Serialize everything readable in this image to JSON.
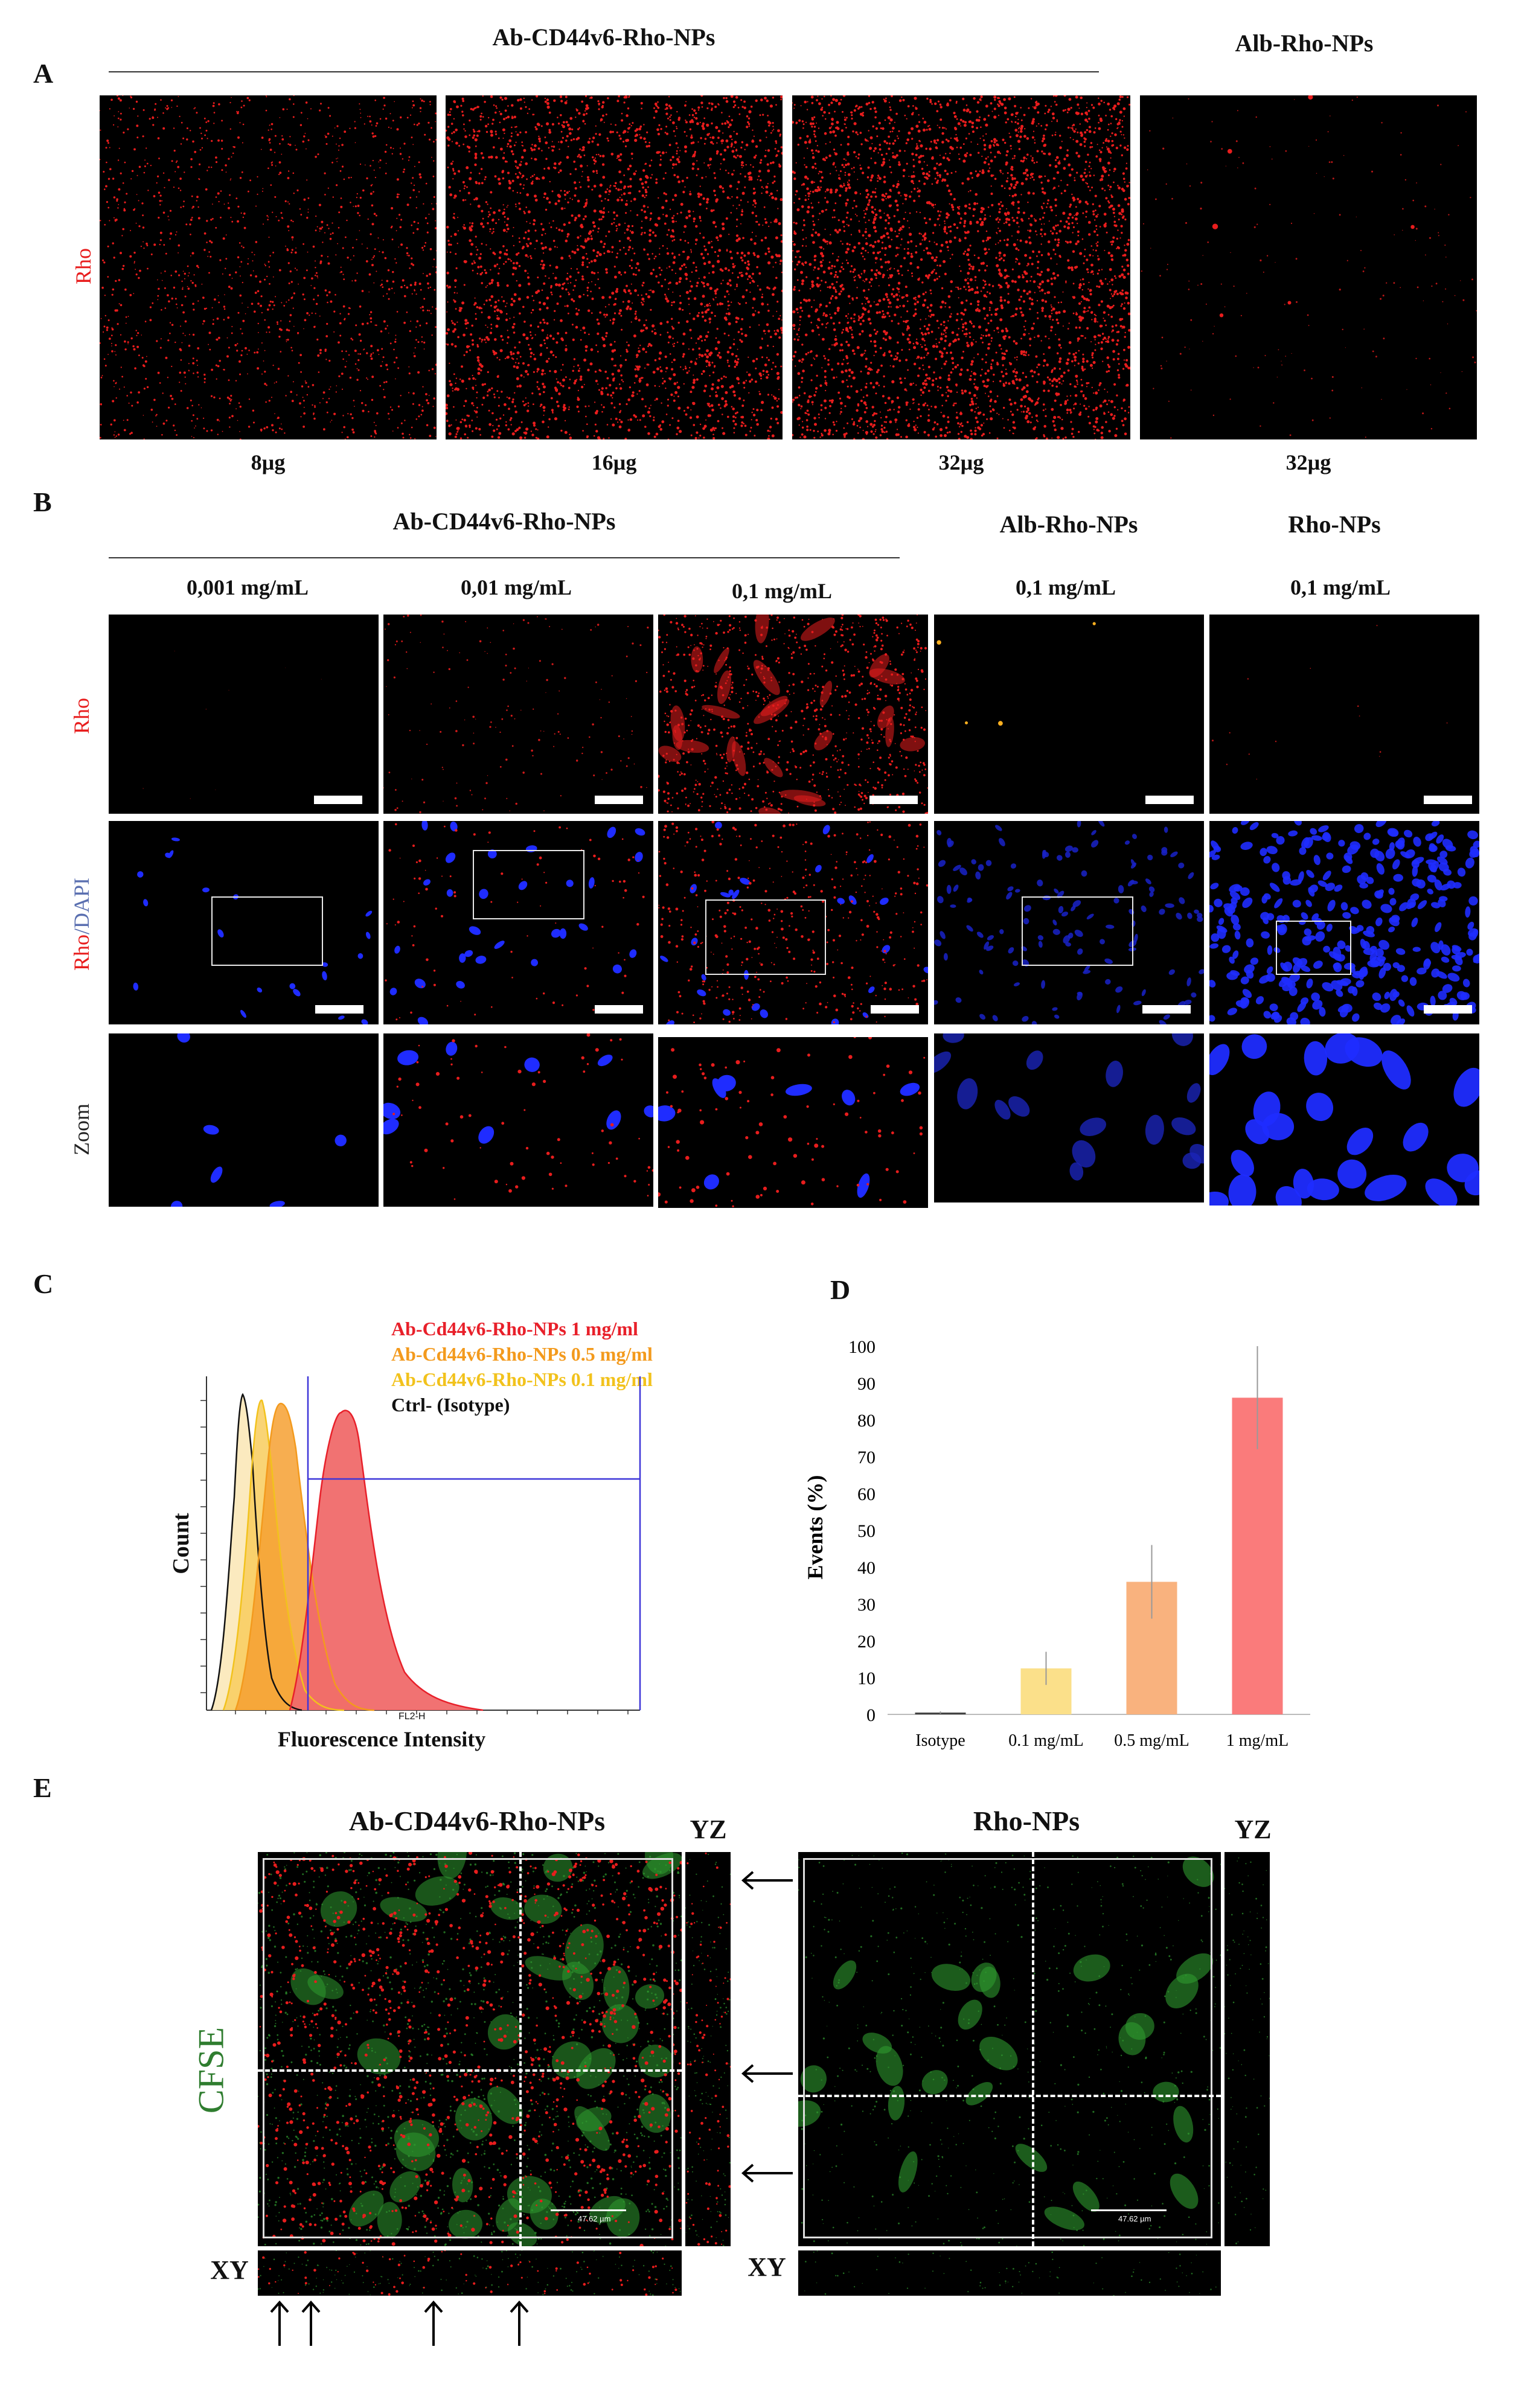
{
  "panel_a": {
    "letter": "A",
    "group_left_title": "Ab-CD44v6-Rho-NPs",
    "group_right_title": "Alb-Rho-NPs",
    "row_label": "Rho",
    "doses": [
      "8µg",
      "16µg",
      "32µg",
      "32µg"
    ],
    "image_tag": "RFP"
  },
  "panel_b": {
    "letter": "B",
    "group_left_title": "Ab-CD44v6-Rho-NPs",
    "group_mid_title": "Alb-Rho-NPs",
    "group_right_title": "Rho-NPs",
    "concentrations": [
      "0,001 mg/mL",
      "0,01 mg/mL",
      "0,1 mg/mL",
      "0,1 mg/mL",
      "0,1 mg/mL"
    ],
    "row_labels": {
      "rho": "Rho",
      "rho_part": "Rho",
      "slash": "/",
      "dapi_part": "DAPI",
      "zoom": "Zoom"
    }
  },
  "panel_c": {
    "letter": "C",
    "legend": [
      {
        "label": "Ab-Cd44v6-Rho-NPs 1 mg/ml",
        "color": "#e8202a"
      },
      {
        "label": "Ab-Cd44v6-Rho-NPs 0.5 mg/ml",
        "color": "#f39a1d"
      },
      {
        "label": "Ab-Cd44v6-Rho-NPs 0.1 mg/ml",
        "color": "#f2c21c"
      },
      {
        "label": "Ctrl- (Isotype)",
        "color": "#111111"
      }
    ],
    "ylabel": "Count",
    "xlabel": "Fluorescence Intensity",
    "channel_tag": "FL2-H"
  },
  "panel_d": {
    "letter": "D"
  },
  "chart_data": {
    "type": "bar",
    "categories": [
      "Isotype",
      "0.1 mg/mL",
      "0.5 mg/mL",
      "1 mg/mL"
    ],
    "values": [
      0.5,
      12.5,
      36,
      86
    ],
    "errors": [
      0.3,
      4.5,
      10,
      14
    ],
    "colors": [
      "#444444",
      "#fbe08a",
      "#f9b27e",
      "#fa7b7b"
    ],
    "ylabel": "Events (%)",
    "ylim": [
      0,
      100
    ],
    "yticks": [
      0,
      10,
      20,
      30,
      40,
      50,
      60,
      70,
      80,
      90,
      100
    ]
  },
  "panel_e": {
    "letter": "E",
    "left_title": "Ab-CD44v6-Rho-NPs",
    "right_title": "Rho-NPs",
    "yz_label_left": "YZ",
    "yz_label_right": "YZ",
    "xy_label_left": "XY",
    "xy_label_right": "XY",
    "stain_label": "CFSE",
    "scale_text_left": "47.62 µm",
    "scale_text_right": "47.62 µm"
  },
  "colors": {
    "rho_red": "#e81d1d",
    "dapi_blue": "#1f2cff",
    "cfse_green": "#2f9a2f"
  }
}
